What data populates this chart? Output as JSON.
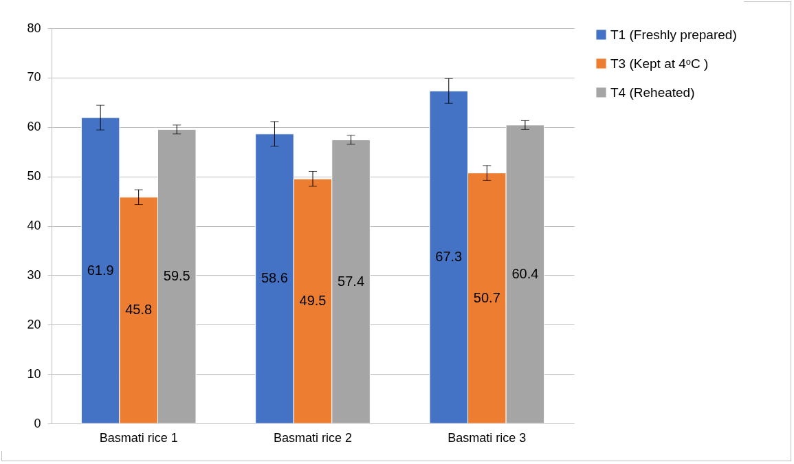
{
  "chart_data": {
    "type": "bar",
    "categories": [
      "Basmati rice 1",
      "Basmati rice 2",
      "Basmati rice 3"
    ],
    "series": [
      {
        "name": "T1 (Freshly prepared)",
        "color": "#4472c4",
        "values": [
          61.9,
          58.6,
          67.3
        ],
        "errors": [
          2.5,
          2.5,
          2.5
        ]
      },
      {
        "name": "T3 (Kept at 4ᵒC )",
        "color": "#ed7d31",
        "values": [
          45.8,
          49.5,
          50.7
        ],
        "errors": [
          1.5,
          1.5,
          1.5
        ]
      },
      {
        "name": "T4 (Reheated)",
        "color": "#a5a5a5",
        "values": [
          59.5,
          57.4,
          60.4
        ],
        "errors": [
          0.9,
          0.9,
          0.9
        ]
      }
    ],
    "ylim": [
      0,
      80
    ],
    "yticks": [
      0,
      10,
      20,
      30,
      40,
      50,
      60,
      70,
      80
    ],
    "grid": "y",
    "legend": "right",
    "data_labels": true
  }
}
